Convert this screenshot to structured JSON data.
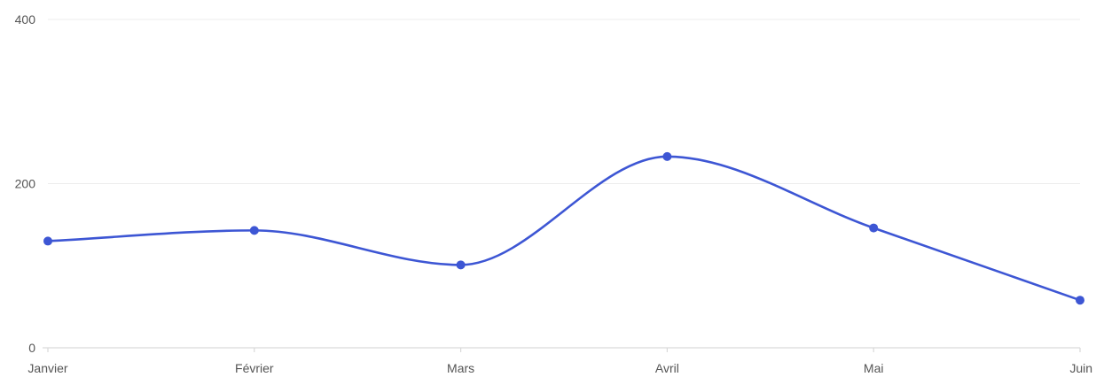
{
  "chart_data": {
    "type": "line",
    "categories": [
      "Janvier",
      "Février",
      "Mars",
      "Avril",
      "Mai",
      "Juin"
    ],
    "series": [
      {
        "values": [
          130,
          143,
          101,
          233,
          146,
          58
        ],
        "color": "#3d56d4"
      }
    ],
    "ylim": [
      0,
      400
    ],
    "yticks": [
      "0",
      "200",
      "400"
    ],
    "grid": true,
    "smooth": true,
    "markers": true
  }
}
